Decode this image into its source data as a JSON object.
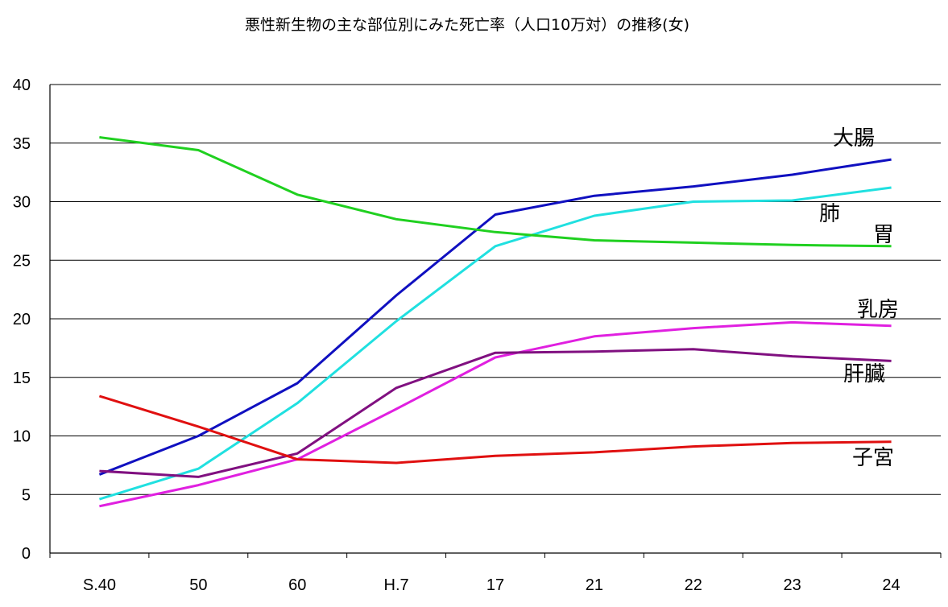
{
  "chart_data": {
    "type": "line",
    "title": "悪性新生物の主な部位別にみた死亡率（人口10万対）の推移(女)",
    "categories": [
      "S.40",
      "50",
      "60",
      "H.7",
      "17",
      "21",
      "22",
      "23",
      "24"
    ],
    "yticks": [
      "0",
      "5",
      "10",
      "15",
      "20",
      "25",
      "30",
      "35",
      "40"
    ],
    "ylim": [
      0,
      40
    ],
    "grid": true,
    "series": [
      {
        "name": "大腸",
        "color": "#1010c0",
        "values": [
          6.7,
          10.0,
          14.5,
          22.0,
          28.9,
          30.5,
          31.3,
          32.3,
          33.6
        ]
      },
      {
        "name": "肺",
        "color": "#20e0e0",
        "values": [
          4.6,
          7.2,
          12.8,
          19.8,
          26.2,
          28.8,
          30.0,
          30.1,
          31.2
        ]
      },
      {
        "name": "胃",
        "color": "#20d020",
        "values": [
          35.5,
          34.4,
          30.6,
          28.5,
          27.4,
          26.7,
          26.5,
          26.3,
          26.2
        ]
      },
      {
        "name": "乳房",
        "color": "#e020e0",
        "values": [
          4.0,
          5.8,
          8.0,
          12.3,
          16.7,
          18.5,
          19.2,
          19.7,
          19.4
        ]
      },
      {
        "name": "肝臓",
        "color": "#801080",
        "values": [
          7.0,
          6.5,
          8.5,
          14.1,
          17.1,
          17.2,
          17.4,
          16.8,
          16.4
        ]
      },
      {
        "name": "子宮",
        "color": "#e01010",
        "values": [
          13.4,
          10.8,
          8.0,
          7.7,
          8.3,
          8.6,
          9.1,
          9.4,
          9.5
        ]
      }
    ]
  }
}
